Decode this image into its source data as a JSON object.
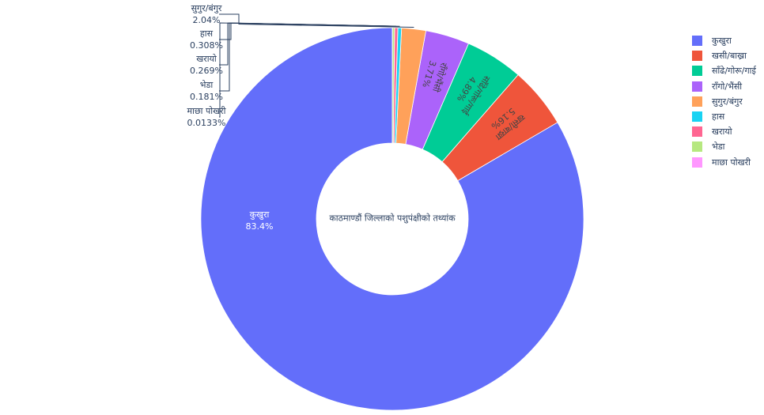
{
  "chart_data": {
    "type": "pie",
    "hole": true,
    "center_text": "काठमाण्डौं जिल्लाको पशुपंक्षीको तथ्यांक",
    "legend_position": "right",
    "slices": [
      {
        "label": "कुखुरा",
        "percent_text": "83.4%",
        "value": 83.4,
        "color": "#636efa"
      },
      {
        "label": "खसी/बाख्रा",
        "percent_text": "5.16%",
        "value": 5.16,
        "color": "#EF553B"
      },
      {
        "label": "साँढे/गोरू/गाई",
        "percent_text": "4.89%",
        "value": 4.89,
        "color": "#00cc96"
      },
      {
        "label": "राँगो/भैंसी",
        "percent_text": "3.71%",
        "value": 3.71,
        "color": "#ab63fa"
      },
      {
        "label": "सुगुर/बंगुर",
        "percent_text": "2.04%",
        "value": 2.04,
        "color": "#FFA15A"
      },
      {
        "label": "हास",
        "percent_text": "0.308%",
        "value": 0.308,
        "color": "#19d3f3"
      },
      {
        "label": "खरायो",
        "percent_text": "0.269%",
        "value": 0.269,
        "color": "#FF6692"
      },
      {
        "label": "भेडा",
        "percent_text": "0.181%",
        "value": 0.181,
        "color": "#B6E880"
      },
      {
        "label": "माछा पोखरी",
        "percent_text": "0.0133%",
        "value": 0.0133,
        "color": "#FF97FF"
      }
    ]
  }
}
